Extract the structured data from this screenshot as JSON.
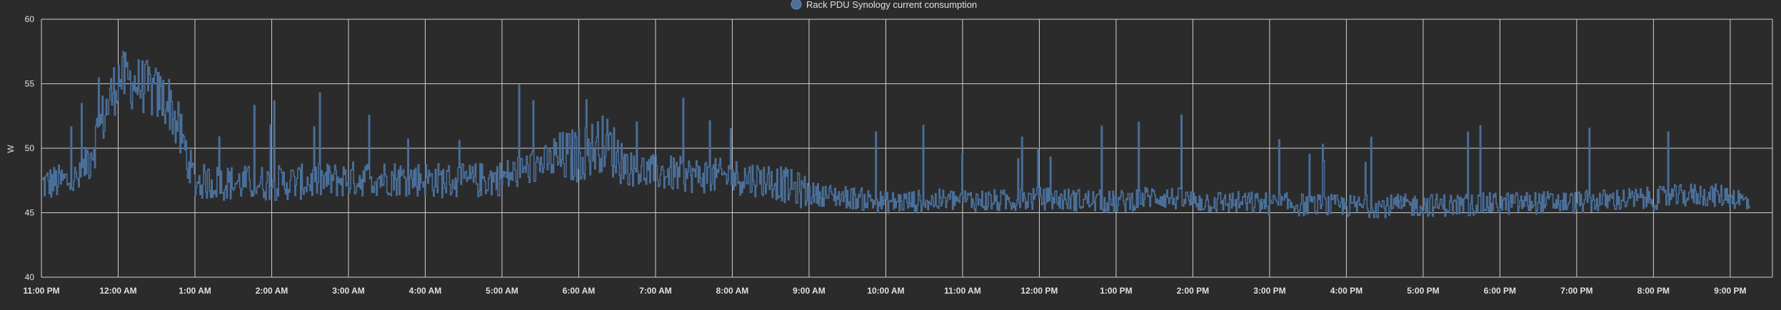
{
  "chart_data": {
    "type": "line",
    "legend": {
      "label": "Rack PDU Synology current consumption",
      "position": "top-center"
    },
    "ylabel": "W",
    "xlabel": "",
    "ylim": [
      40,
      60
    ],
    "yticks": [
      40,
      45,
      50,
      55,
      60
    ],
    "xticks": [
      "11:00 PM",
      "12:00 AM",
      "1:00 AM",
      "2:00 AM",
      "3:00 AM",
      "4:00 AM",
      "5:00 AM",
      "6:00 AM",
      "7:00 AM",
      "8:00 AM",
      "9:00 AM",
      "10:00 AM",
      "11:00 AM",
      "12:00 PM",
      "1:00 PM",
      "2:00 PM",
      "3:00 PM",
      "4:00 PM",
      "5:00 PM",
      "6:00 PM",
      "7:00 PM",
      "8:00 PM",
      "9:00 PM"
    ],
    "grid": true,
    "colors": {
      "series": "#4a6f99",
      "grid": "#cfcfcf",
      "axis_text": "#e0e0e0",
      "background": "#2b2b2c"
    },
    "series": [
      {
        "name": "Rack PDU Synology current consumption",
        "x_hours_note_free": true,
        "x": [
          "11:00 PM",
          "11:30 PM",
          "12:00 AM",
          "12:20 AM",
          "12:40 AM",
          "1:00 AM",
          "1:30 AM",
          "2:00 AM",
          "2:30 AM",
          "3:00 AM",
          "3:30 AM",
          "4:00 AM",
          "4:30 AM",
          "5:00 AM",
          "5:30 AM",
          "6:00 AM",
          "6:20 AM",
          "6:40 AM",
          "7:00 AM",
          "7:30 AM",
          "8:00 AM",
          "8:30 AM",
          "9:00 AM",
          "9:30 AM",
          "10:00 AM",
          "10:30 AM",
          "11:00 AM",
          "11:30 AM",
          "12:00 PM",
          "12:30 PM",
          "1:00 PM",
          "1:30 PM",
          "2:00 PM",
          "2:30 PM",
          "3:00 PM",
          "3:30 PM",
          "4:00 PM",
          "4:30 PM",
          "5:00 PM",
          "5:30 PM",
          "6:00 PM",
          "6:30 PM",
          "7:00 PM",
          "7:30 PM",
          "8:00 PM",
          "8:30 PM",
          "9:00 PM",
          "9:15 PM"
        ],
        "y": [
          47.2,
          47.6,
          55.5,
          54.8,
          53.5,
          47.4,
          47.3,
          47.3,
          47.4,
          47.6,
          47.7,
          47.6,
          47.4,
          47.7,
          48.8,
          49.5,
          50.5,
          48.4,
          48.1,
          47.9,
          47.8,
          47.5,
          46.5,
          46.2,
          45.8,
          45.9,
          46.0,
          45.9,
          46.1,
          46.0,
          45.8,
          46.3,
          45.9,
          45.8,
          45.7,
          45.6,
          45.5,
          45.5,
          45.6,
          45.6,
          45.7,
          45.8,
          45.8,
          46.0,
          46.1,
          46.4,
          46.3,
          45.7
        ]
      }
    ]
  }
}
